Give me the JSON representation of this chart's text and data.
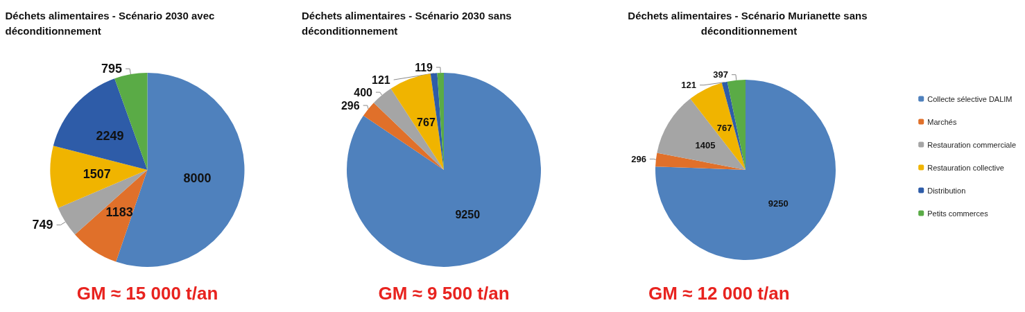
{
  "chart_data": [
    {
      "type": "pie",
      "title": "Déchets alimentaires - Scénario 2030 avec déconditionnement",
      "categories": [
        null,
        null,
        null,
        null,
        null,
        null
      ],
      "values": [
        8000,
        1183,
        749,
        1507,
        2249,
        795
      ],
      "colors": [
        "#4f81bd",
        "#e0702a",
        "#a5a5a5",
        "#f0b400",
        "#2e5ca8",
        "#5aab46"
      ],
      "data_labels": true,
      "legend": false,
      "annotations": [
        "GM ≈ 15 000 t/an"
      ]
    },
    {
      "type": "pie",
      "title": "Déchets alimentaires - Scénario 2030 sans déconditionnement",
      "categories": [
        null,
        null,
        null,
        null,
        null,
        null
      ],
      "values": [
        9250,
        296,
        400,
        767,
        121,
        119
      ],
      "colors": [
        "#4f81bd",
        "#e0702a",
        "#a5a5a5",
        "#f0b400",
        "#2e5ca8",
        "#5aab46"
      ],
      "data_labels": true,
      "legend": false,
      "annotations": [
        "GM ≈ 9 500 t/an"
      ]
    },
    {
      "type": "pie",
      "title": "Déchets alimentaires - Scénario Murianette sans déconditionnement",
      "categories": [
        "Collecte sélective DALIM",
        "Marchés",
        "Restauration commerciale",
        "Restauration collective",
        "Distribution",
        "Petits commerces"
      ],
      "values": [
        9250,
        296,
        1405,
        767,
        121,
        397
      ],
      "colors": [
        "#4f81bd",
        "#e0702a",
        "#a5a5a5",
        "#f0b400",
        "#2e5ca8",
        "#5aab46"
      ],
      "data_labels": true,
      "legend": "right",
      "annotations": [
        "GM ≈ 12 000 t/an"
      ]
    }
  ]
}
